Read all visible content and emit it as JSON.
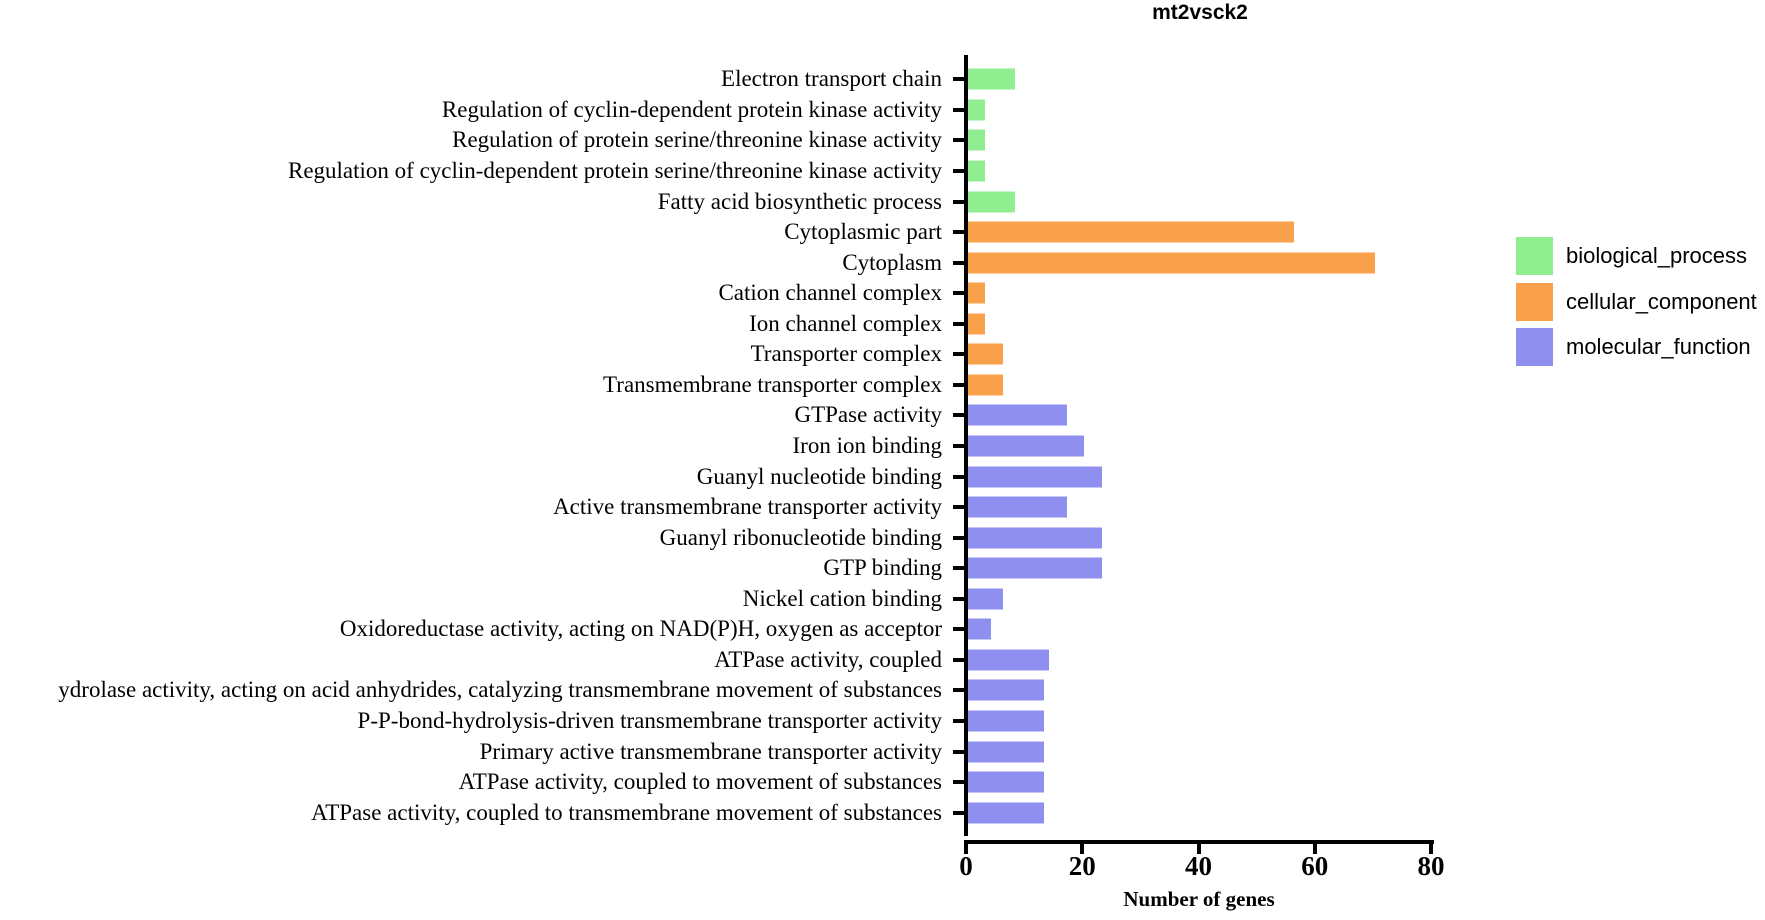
{
  "chart_data": {
    "type": "bar",
    "orientation": "horizontal",
    "title": "mt2vsck2",
    "xlabel": "Number of genes",
    "xlim": [
      0,
      80
    ],
    "xticks": [
      0,
      20,
      40,
      60,
      80
    ],
    "grid": false,
    "legend_position": "right",
    "categories": [
      "Electron transport chain",
      "Regulation of cyclin-dependent protein kinase activity",
      "Regulation of protein serine/threonine kinase activity",
      "Regulation of cyclin-dependent protein serine/threonine kinase activity",
      "Fatty acid biosynthetic process",
      "Cytoplasmic part",
      "Cytoplasm",
      "Cation channel complex",
      "Ion channel complex",
      "Transporter complex",
      "Transmembrane transporter complex",
      "GTPase activity",
      "Iron ion binding",
      "Guanyl nucleotide binding",
      "Active transmembrane transporter activity",
      "Guanyl ribonucleotide binding",
      "GTP binding",
      "Nickel cation binding",
      "Oxidoreductase activity, acting on NAD(P)H, oxygen as acceptor",
      "ATPase activity, coupled",
      "ydrolase activity, acting on acid anhydrides, catalyzing transmembrane movement of substances",
      "P-P-bond-hydrolysis-driven transmembrane transporter activity",
      "Primary active transmembrane transporter activity",
      "ATPase activity, coupled to movement of substances",
      "ATPase activity, coupled to transmembrane movement of substances"
    ],
    "values": [
      8,
      3,
      3,
      3,
      8,
      56,
      70,
      3,
      3,
      6,
      6,
      17,
      20,
      23,
      17,
      23,
      23,
      6,
      4,
      14,
      13,
      13,
      13,
      13,
      13
    ],
    "groups": [
      "biological_process",
      "biological_process",
      "biological_process",
      "biological_process",
      "biological_process",
      "cellular_component",
      "cellular_component",
      "cellular_component",
      "cellular_component",
      "cellular_component",
      "cellular_component",
      "molecular_function",
      "molecular_function",
      "molecular_function",
      "molecular_function",
      "molecular_function",
      "molecular_function",
      "molecular_function",
      "molecular_function",
      "molecular_function",
      "molecular_function",
      "molecular_function",
      "molecular_function",
      "molecular_function",
      "molecular_function"
    ],
    "legend": [
      {
        "group": "biological_process",
        "label": "biological_process",
        "color": "#90EE90"
      },
      {
        "group": "cellular_component",
        "label": "cellular_component",
        "color": "#F9A04A"
      },
      {
        "group": "molecular_function",
        "label": "molecular_function",
        "color": "#8F8FF0"
      }
    ],
    "axis_color": "#000000"
  }
}
